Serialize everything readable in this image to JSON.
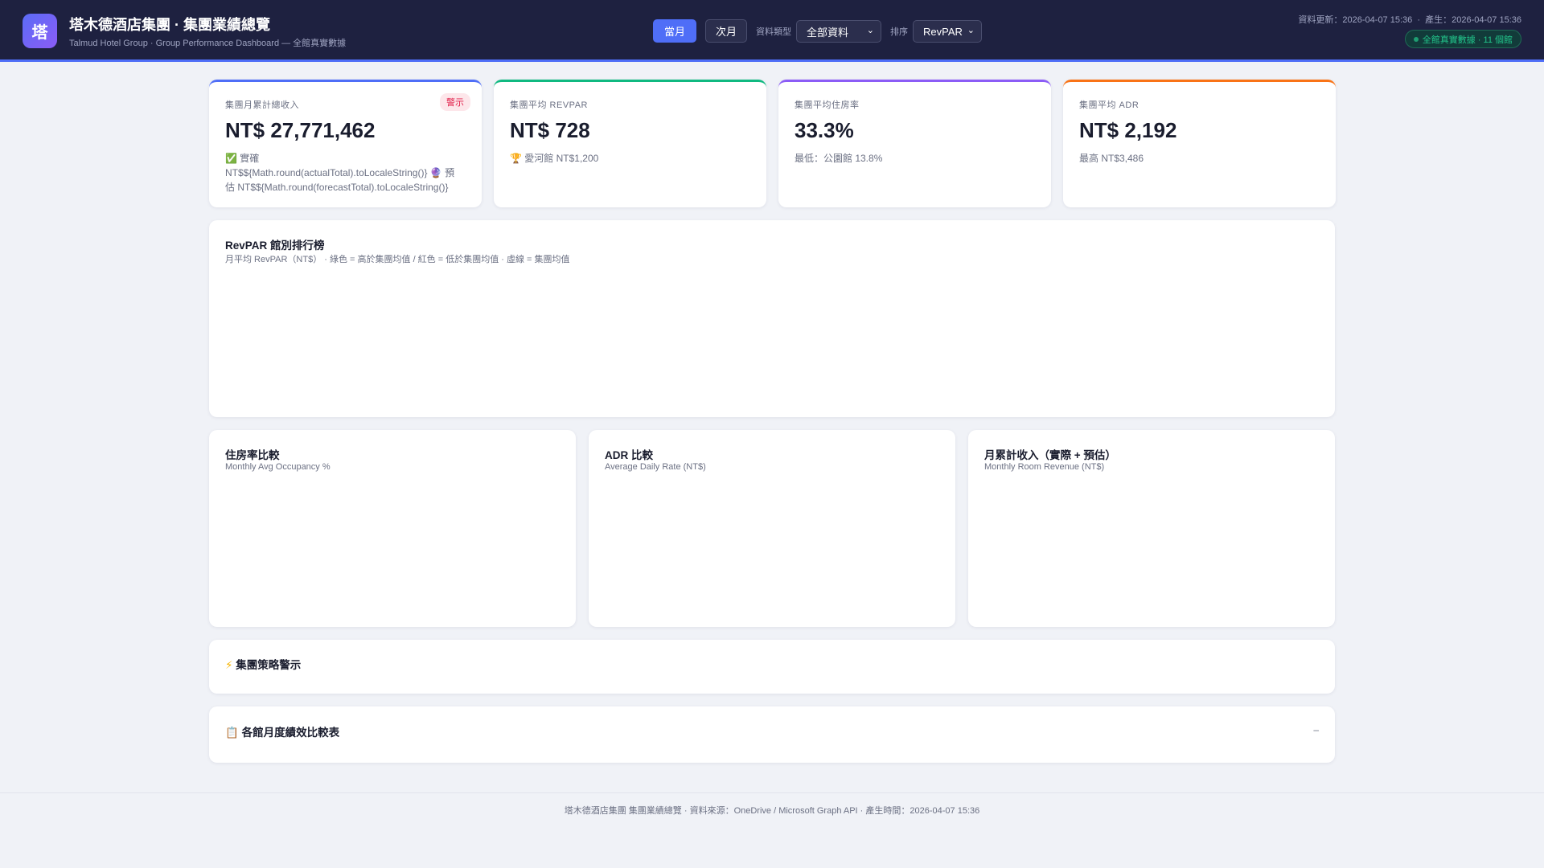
{
  "header": {
    "logo": "塔",
    "title": "塔木德酒店集團 · 集團業績總覽",
    "subtitle": "Talmud Hotel Group · Group Performance Dashboard — 全館真實數據",
    "btn_current": "當月",
    "btn_next": "次月",
    "type_label": "資料類型",
    "type_value": "全部資料",
    "sort_label": "排序",
    "sort_value": "RevPAR",
    "timestamps": "資料更新：2026-04-07 15:36  ·  產生：2026-04-07 15:36",
    "badge": "全館真實數據 · 11 個館"
  },
  "kpis": [
    {
      "label": "集團月累計總收入",
      "value": "NT$ 27,771,462",
      "badge": "警示",
      "sub": "✅ 實確 NT$${Math.round(actualTotal).toLocaleString()} 🔮 預估 NT$${Math.round(forecastTotal).toLocaleString()}",
      "color": "#4f6ef7"
    },
    {
      "label": "集團平均 REVPAR",
      "value": "NT$ 728",
      "sub": "🏆 愛河館 NT$1,200",
      "color": "#10b981"
    },
    {
      "label": "集團平均住房率",
      "value": "33.3%",
      "sub": "最低：公園館 13.8%",
      "color": "#8b5cf6"
    },
    {
      "label": "集團平均 ADR",
      "value": "NT$ 2,192",
      "sub": "最高 NT$3,486",
      "color": "#f97316"
    }
  ],
  "revpar": {
    "title": "RevPAR 館別排行榜",
    "subtitle": "月平均 RevPAR（NT$） · 綠色 = 高於集團均值 / 紅色 = 低於集團均值 · 虛線 = 集團均值"
  },
  "charts": [
    {
      "title": "住房率比較",
      "subtitle": "Monthly Avg Occupancy %"
    },
    {
      "title": "ADR 比較",
      "subtitle": "Average Daily Rate (NT$)"
    },
    {
      "title": "月累計收入（實際 + 預估）",
      "subtitle": "Monthly Room Revenue (NT$)"
    }
  ],
  "alerts": {
    "icon": "⚡",
    "title": "集團策略警示"
  },
  "table": {
    "icon": "📋",
    "title": "各館月度績效比較表",
    "toggle": "–"
  },
  "footer": "塔木德酒店集團 集團業績總覽 · 資料來源：OneDrive / Microsoft Graph API · 產生時間：2026-04-07 15:36"
}
